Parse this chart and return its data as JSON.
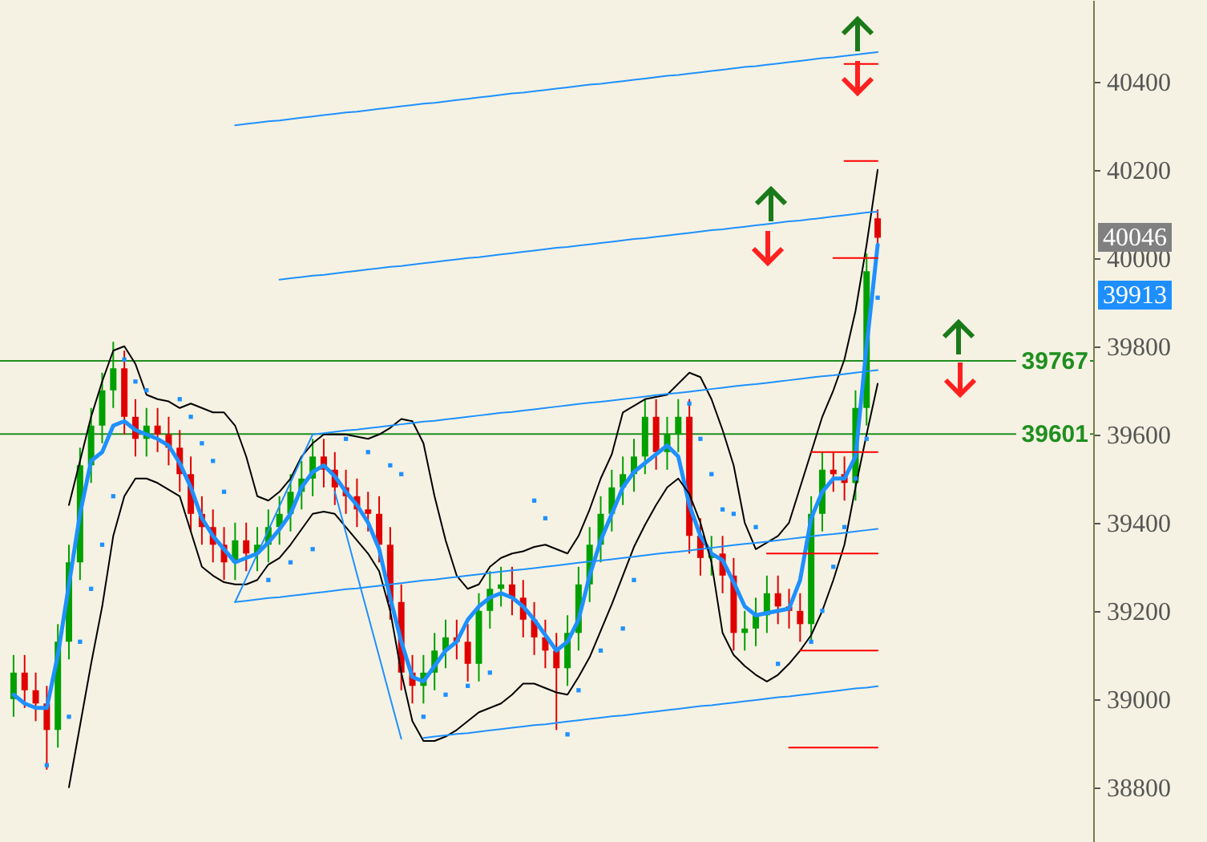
{
  "chart_data": {
    "type": "candlestick",
    "tick_labels": "y",
    "ylim": [
      38676,
      40585
    ],
    "yticks": [
      38800,
      39000,
      39200,
      39400,
      39600,
      39800,
      40000,
      40200,
      40400
    ],
    "categories": [
      null,
      null,
      null,
      null,
      null,
      null,
      null,
      null,
      null,
      null,
      null,
      null,
      null,
      null,
      null,
      null,
      null,
      null,
      null,
      null,
      null,
      null,
      null,
      null,
      null,
      null,
      null,
      null,
      null,
      null,
      null,
      null,
      null,
      null,
      null,
      null,
      null,
      null,
      null,
      null,
      null,
      null,
      null,
      null,
      null,
      null,
      null,
      null,
      null,
      null,
      null,
      null,
      null,
      null,
      null,
      null,
      null,
      null,
      null,
      null,
      null,
      null,
      null,
      null,
      null,
      null,
      null,
      null,
      null,
      null,
      null,
      null,
      null,
      null,
      null,
      null,
      null,
      null,
      null
    ],
    "ohlc": [
      [
        39000,
        39100,
        38960,
        39060
      ],
      [
        39060,
        39100,
        38980,
        39020
      ],
      [
        39020,
        39060,
        38950,
        38990
      ],
      [
        38990,
        39030,
        38840,
        38930
      ],
      [
        38930,
        39170,
        38890,
        39130
      ],
      [
        39130,
        39350,
        39090,
        39310
      ],
      [
        39310,
        39570,
        39270,
        39530
      ],
      [
        39530,
        39660,
        39490,
        39620
      ],
      [
        39620,
        39740,
        39580,
        39700
      ],
      [
        39700,
        39810,
        39660,
        39750
      ],
      [
        39750,
        39790,
        39600,
        39640
      ],
      [
        39640,
        39680,
        39550,
        39590
      ],
      [
        39590,
        39660,
        39550,
        39620
      ],
      [
        39620,
        39660,
        39560,
        39600
      ],
      [
        39600,
        39640,
        39530,
        39570
      ],
      [
        39570,
        39610,
        39470,
        39510
      ],
      [
        39510,
        39550,
        39380,
        39420
      ],
      [
        39420,
        39460,
        39350,
        39390
      ],
      [
        39390,
        39430,
        39310,
        39350
      ],
      [
        39350,
        39390,
        39270,
        39310
      ],
      [
        39310,
        39400,
        39270,
        39360
      ],
      [
        39360,
        39400,
        39290,
        39330
      ],
      [
        39330,
        39390,
        39290,
        39350
      ],
      [
        39350,
        39430,
        39310,
        39390
      ],
      [
        39390,
        39460,
        39350,
        39420
      ],
      [
        39420,
        39510,
        39380,
        39470
      ],
      [
        39470,
        39540,
        39430,
        39500
      ],
      [
        39500,
        39590,
        39460,
        39550
      ],
      [
        39550,
        39590,
        39480,
        39520
      ],
      [
        39520,
        39560,
        39440,
        39480
      ],
      [
        39480,
        39520,
        39420,
        39460
      ],
      [
        39460,
        39500,
        39390,
        39430
      ],
      [
        39430,
        39470,
        39380,
        39420
      ],
      [
        39420,
        39460,
        39310,
        39350
      ],
      [
        39350,
        39390,
        39180,
        39220
      ],
      [
        39220,
        39260,
        39020,
        39060
      ],
      [
        39060,
        39100,
        38990,
        39030
      ],
      [
        39030,
        39100,
        38990,
        39060
      ],
      [
        39060,
        39150,
        39020,
        39110
      ],
      [
        39110,
        39180,
        39070,
        39140
      ],
      [
        39140,
        39180,
        39090,
        39130
      ],
      [
        39130,
        39170,
        39040,
        39080
      ],
      [
        39080,
        39240,
        39040,
        39200
      ],
      [
        39200,
        39290,
        39160,
        39250
      ],
      [
        39250,
        39300,
        39210,
        39260
      ],
      [
        39260,
        39300,
        39190,
        39230
      ],
      [
        39230,
        39270,
        39140,
        39180
      ],
      [
        39180,
        39220,
        39100,
        39140
      ],
      [
        39140,
        39180,
        39070,
        39110
      ],
      [
        39110,
        39150,
        38930,
        39070
      ],
      [
        39070,
        39190,
        39030,
        39150
      ],
      [
        39150,
        39300,
        39110,
        39260
      ],
      [
        39260,
        39390,
        39220,
        39350
      ],
      [
        39350,
        39460,
        39310,
        39420
      ],
      [
        39420,
        39520,
        39380,
        39480
      ],
      [
        39480,
        39550,
        39440,
        39510
      ],
      [
        39510,
        39590,
        39470,
        39550
      ],
      [
        39550,
        39680,
        39510,
        39640
      ],
      [
        39640,
        39680,
        39520,
        39560
      ],
      [
        39560,
        39640,
        39520,
        39600
      ],
      [
        39600,
        39680,
        39560,
        39640
      ],
      [
        39640,
        39680,
        39330,
        39370
      ],
      [
        39370,
        39410,
        39280,
        39320
      ],
      [
        39320,
        39370,
        39280,
        39330
      ],
      [
        39330,
        39370,
        39240,
        39280
      ],
      [
        39280,
        39320,
        39110,
        39150
      ],
      [
        39150,
        39200,
        39110,
        39160
      ],
      [
        39160,
        39230,
        39120,
        39190
      ],
      [
        39190,
        39280,
        39150,
        39240
      ],
      [
        39240,
        39280,
        39170,
        39210
      ],
      [
        39210,
        39250,
        39160,
        39200
      ],
      [
        39200,
        39240,
        39130,
        39170
      ],
      [
        39170,
        39460,
        39130,
        39420
      ],
      [
        39420,
        39560,
        39380,
        39520
      ],
      [
        39520,
        39560,
        39470,
        39510
      ],
      [
        39510,
        39550,
        39450,
        39490
      ],
      [
        39490,
        39700,
        39450,
        39660
      ],
      [
        39660,
        40010,
        39620,
        39970
      ],
      [
        40090,
        40110,
        40030,
        40046
      ]
    ],
    "colors": [
      "#00a000",
      "#e00000",
      "#e00000",
      "#e00000",
      "#00a000",
      "#00a000",
      "#00a000",
      "#00a000",
      "#00a000",
      "#00a000",
      "#e00000",
      "#e00000",
      "#00a000",
      "#e00000",
      "#e00000",
      "#e00000",
      "#e00000",
      "#e00000",
      "#e00000",
      "#e00000",
      "#00a000",
      "#e00000",
      "#00a000",
      "#00a000",
      "#00a000",
      "#00a000",
      "#00a000",
      "#00a000",
      "#e00000",
      "#e00000",
      "#e00000",
      "#e00000",
      "#e00000",
      "#e00000",
      "#e00000",
      "#e00000",
      "#e00000",
      "#00a000",
      "#00a000",
      "#00a000",
      "#e00000",
      "#e00000",
      "#00a000",
      "#00a000",
      "#00a000",
      "#e00000",
      "#e00000",
      "#e00000",
      "#e00000",
      "#e00000",
      "#00a000",
      "#00a000",
      "#00a000",
      "#00a000",
      "#00a000",
      "#00a000",
      "#00a000",
      "#00a000",
      "#e00000",
      "#00a000",
      "#00a000",
      "#e00000",
      "#e00000",
      "#00a000",
      "#e00000",
      "#e00000",
      "#00a000",
      "#00a000",
      "#00a000",
      "#e00000",
      "#e00000",
      "#e00000",
      "#00a000",
      "#00a000",
      "#e00000",
      "#e00000",
      "#00a000",
      "#00a000",
      "#e00000"
    ],
    "series": [
      {
        "type": "line",
        "color": "#1e90ff",
        "values": [
          39010,
          38990,
          38980,
          38980,
          39100,
          39260,
          39420,
          39540,
          39560,
          39620,
          39630,
          39610,
          39600,
          39590,
          39575,
          39535,
          39480,
          39410,
          39370,
          39340,
          39310,
          39320,
          39330,
          39355,
          39385,
          39420,
          39480,
          39515,
          39530,
          39505,
          39470,
          39440,
          39400,
          39340,
          39230,
          39130,
          39050,
          39040,
          39075,
          39110,
          39130,
          39180,
          39210,
          39230,
          39240,
          39230,
          39210,
          39180,
          39145,
          39110,
          39130,
          39180,
          39280,
          39360,
          39420,
          39480,
          39515,
          39535,
          39555,
          39575,
          39550,
          39440,
          39370,
          39330,
          39315,
          39265,
          39210,
          39190,
          39195,
          39200,
          39205,
          39270,
          39410,
          39470,
          39500,
          39500,
          39550,
          39800,
          40030
        ]
      },
      {
        "type": "line",
        "color": "#000000",
        "values": [
          null,
          null,
          null,
          null,
          null,
          39440,
          39540,
          39640,
          39720,
          39790,
          39800,
          39760,
          39690,
          39680,
          39675,
          39660,
          39670,
          39660,
          39650,
          39650,
          39620,
          39550,
          39460,
          39450,
          39470,
          39500,
          39550,
          39580,
          39600,
          39600,
          39600,
          39595,
          39590,
          39600,
          39615,
          39635,
          39630,
          39580,
          39460,
          39360,
          39280,
          39250,
          39260,
          39300,
          39320,
          39330,
          39335,
          39345,
          39350,
          39340,
          39330,
          39370,
          39430,
          39500,
          39555,
          39650,
          39665,
          39680,
          39685,
          39690,
          39715,
          39740,
          39730,
          39680,
          39610,
          39530,
          39400,
          39340,
          39355,
          39370,
          39400,
          39480,
          39560,
          39640,
          39700,
          39770,
          39880,
          40030,
          40200
        ]
      },
      {
        "type": "line",
        "color": "#000000",
        "values": [
          null,
          null,
          null,
          null,
          null,
          38800,
          38940,
          39080,
          39210,
          39370,
          39460,
          39500,
          39500,
          39490,
          39475,
          39460,
          39380,
          39300,
          39280,
          39265,
          39260,
          39260,
          39270,
          39305,
          39320,
          39350,
          39385,
          39420,
          39425,
          39420,
          39390,
          39360,
          39330,
          39290,
          39200,
          39060,
          38950,
          38905,
          38905,
          38915,
          38930,
          38950,
          38970,
          38980,
          38990,
          39010,
          39035,
          39035,
          39025,
          39015,
          39010,
          39050,
          39095,
          39155,
          39215,
          39280,
          39345,
          39395,
          39440,
          39480,
          39500,
          39465,
          39400,
          39310,
          39150,
          39100,
          39075,
          39055,
          39040,
          39055,
          39080,
          39110,
          39145,
          39200,
          39270,
          39350,
          39480,
          39600,
          39715
        ]
      },
      {
        "type": "scatter",
        "marker": "square",
        "color": "#1e90ff",
        "values": [
          null,
          null,
          null,
          38850,
          null,
          38960,
          39130,
          39250,
          39350,
          39460,
          39770,
          39720,
          39700,
          null,
          null,
          39680,
          39640,
          39580,
          39540,
          39470,
          null,
          null,
          null,
          39270,
          null,
          39310,
          null,
          39340,
          null,
          null,
          39590,
          null,
          39560,
          null,
          39530,
          39510,
          null,
          38960,
          null,
          39010,
          null,
          39030,
          null,
          39060,
          null,
          null,
          null,
          39450,
          39410,
          null,
          38920,
          39020,
          null,
          39110,
          null,
          39160,
          39270,
          null,
          null,
          null,
          null,
          39670,
          39590,
          39510,
          39430,
          39420,
          null,
          39390,
          null,
          39080,
          null,
          null,
          39130,
          39200,
          39300,
          39390,
          39500,
          39590,
          39910
        ]
      },
      {
        "type": "line",
        "color": "#1e90ff",
        "values": [
          null,
          null,
          null,
          null,
          null,
          null,
          null,
          null,
          null,
          null,
          null,
          null,
          null,
          null,
          null,
          null,
          null,
          null,
          null,
          null,
          40301,
          40304,
          40307,
          40310,
          40312,
          40315,
          40318,
          40321,
          40324,
          40327,
          40330,
          40332,
          40335,
          40338,
          40341,
          40344,
          40347,
          40350,
          40352,
          40355,
          40358,
          40361,
          40364,
          40367,
          40370,
          40373,
          40375,
          40378,
          40381,
          40384,
          40387,
          40390,
          40393,
          40395,
          40398,
          40401,
          40404,
          40407,
          40410,
          40413,
          40415,
          40418,
          40421,
          40424,
          40427,
          40430,
          40433,
          40435,
          40438,
          40441,
          40444,
          40447,
          40450,
          40453,
          40455,
          40458,
          40461,
          40464,
          40467
        ]
      },
      {
        "type": "line",
        "color": "#1e90ff",
        "values": [
          null,
          null,
          null,
          null,
          null,
          null,
          null,
          null,
          null,
          null,
          null,
          null,
          null,
          null,
          null,
          null,
          null,
          null,
          null,
          null,
          null,
          null,
          null,
          null,
          39951,
          39954,
          39957,
          39960,
          39962,
          39965,
          39968,
          39971,
          39974,
          39977,
          39980,
          39982,
          39985,
          39988,
          39991,
          39994,
          39997,
          40000,
          40002,
          40005,
          40008,
          40011,
          40014,
          40017,
          40020,
          40023,
          40025,
          40028,
          40031,
          40034,
          40037,
          40040,
          40043,
          40045,
          40048,
          40051,
          40054,
          40057,
          40060,
          40063,
          40065,
          40068,
          40071,
          40074,
          40077,
          40080,
          40083,
          40085,
          40088,
          40091,
          40094,
          40097,
          40100,
          40103,
          40105
        ]
      },
      {
        "type": "line",
        "color": "#1e90ff",
        "values": [
          null,
          null,
          null,
          null,
          null,
          null,
          null,
          null,
          null,
          null,
          null,
          null,
          null,
          null,
          null,
          null,
          null,
          null,
          null,
          null,
          null,
          null,
          null,
          null,
          null,
          null,
          null,
          39600,
          39603,
          39606,
          39609,
          39611,
          39614,
          39617,
          39620,
          39623,
          39626,
          39629,
          39631,
          39634,
          39637,
          39640,
          39643,
          39646,
          39649,
          39651,
          39654,
          39657,
          39660,
          39663,
          39666,
          39669,
          39672,
          39674,
          39677,
          39680,
          39683,
          39686,
          39689,
          39692,
          39694,
          39697,
          39700,
          39703,
          39706,
          39709,
          39712,
          39714,
          39717,
          39720,
          39723,
          39726,
          39729,
          39732,
          39734,
          39737,
          39740,
          39743,
          39746
        ]
      },
      {
        "type": "line",
        "color": "#1e90ff",
        "values": [
          null,
          null,
          null,
          null,
          null,
          null,
          null,
          null,
          null,
          null,
          null,
          null,
          null,
          null,
          null,
          null,
          null,
          null,
          null,
          null,
          39220,
          39223,
          39226,
          39229,
          39231,
          39234,
          39237,
          39240,
          39243,
          39246,
          39249,
          39251,
          39254,
          39257,
          39260,
          39263,
          39266,
          39269,
          39271,
          39274,
          39277,
          39280,
          39283,
          39286,
          39289,
          39292,
          39294,
          39297,
          39300,
          39303,
          39306,
          39309,
          39312,
          39314,
          39317,
          39320,
          39323,
          39326,
          39329,
          39332,
          39334,
          39337,
          39340,
          39343,
          39346,
          39349,
          39352,
          39354,
          39357,
          39360,
          39363,
          39366,
          39369,
          39372,
          39374,
          39377,
          39380,
          39383,
          39386
        ]
      },
      {
        "type": "line",
        "color": "#1e90ff",
        "values": [
          null,
          null,
          null,
          null,
          null,
          null,
          null,
          null,
          null,
          null,
          null,
          null,
          null,
          null,
          null,
          null,
          null,
          null,
          null,
          null,
          null,
          null,
          null,
          null,
          null,
          null,
          null,
          null,
          null,
          null,
          null,
          null,
          null,
          null,
          null,
          null,
          null,
          38912,
          38915,
          38918,
          38921,
          38923,
          38926,
          38929,
          38932,
          38935,
          38938,
          38941,
          38943,
          38946,
          38949,
          38952,
          38955,
          38958,
          38961,
          38963,
          38966,
          38969,
          38972,
          38975,
          38978,
          38981,
          38984,
          38986,
          38989,
          38992,
          38995,
          38998,
          39001,
          39004,
          39006,
          39009,
          39012,
          39015,
          39018,
          39021,
          39024,
          39026,
          39029
        ]
      },
      {
        "type": "line",
        "color": "#1e90ff",
        "values": [
          null,
          null,
          null,
          null,
          null,
          null,
          null,
          null,
          null,
          null,
          null,
          null,
          null,
          null,
          null,
          null,
          null,
          null,
          null,
          null,
          39220,
          39274,
          39329,
          39383,
          39437,
          39491,
          39546,
          39600,
          null,
          null,
          null,
          null,
          null,
          null,
          null,
          null,
          null,
          null,
          null,
          null,
          null,
          null,
          null,
          null,
          null,
          null,
          null,
          null,
          null,
          null,
          null,
          null,
          null,
          null,
          null,
          null,
          null,
          null,
          null,
          null,
          null,
          null,
          null,
          null,
          null,
          null,
          null,
          null,
          null,
          null,
          null,
          null,
          null,
          null,
          null,
          null,
          null,
          null,
          null
        ]
      },
      {
        "type": "line",
        "color": "#1e90ff",
        "values": [
          null,
          null,
          null,
          null,
          null,
          null,
          null,
          null,
          null,
          null,
          null,
          null,
          null,
          null,
          null,
          null,
          null,
          null,
          null,
          null,
          null,
          null,
          null,
          null,
          null,
          null,
          null,
          null,
          null,
          39470,
          39377,
          39283,
          39190,
          39097,
          39003,
          38910,
          null,
          null,
          null,
          null,
          null,
          null,
          null,
          null,
          null,
          null,
          null,
          null,
          null,
          null,
          null,
          null,
          null,
          null,
          null,
          null,
          null,
          null,
          null,
          null,
          null,
          null,
          null,
          null,
          null,
          null,
          null,
          null,
          null,
          null,
          null,
          null,
          null,
          null,
          null,
          null,
          null,
          null,
          null
        ]
      },
      {
        "type": "line",
        "color": "#ff0000",
        "values": [
          null,
          null,
          null,
          null,
          null,
          null,
          null,
          null,
          null,
          null,
          null,
          null,
          null,
          null,
          null,
          null,
          null,
          null,
          null,
          null,
          null,
          null,
          null,
          null,
          null,
          null,
          null,
          null,
          null,
          null,
          null,
          null,
          null,
          null,
          null,
          null,
          null,
          null,
          null,
          null,
          null,
          null,
          null,
          null,
          null,
          null,
          null,
          null,
          null,
          null,
          null,
          null,
          null,
          null,
          null,
          null,
          null,
          null,
          null,
          null,
          null,
          null,
          null,
          null,
          null,
          null,
          null,
          null,
          null,
          null,
          null,
          null,
          null,
          null,
          null,
          40440,
          40440,
          40440,
          40440
        ]
      },
      {
        "type": "line",
        "color": "#ff0000",
        "values": [
          null,
          null,
          null,
          null,
          null,
          null,
          null,
          null,
          null,
          null,
          null,
          null,
          null,
          null,
          null,
          null,
          null,
          null,
          null,
          null,
          null,
          null,
          null,
          null,
          null,
          null,
          null,
          null,
          null,
          null,
          null,
          null,
          null,
          null,
          null,
          null,
          null,
          null,
          null,
          null,
          null,
          null,
          null,
          null,
          null,
          null,
          null,
          null,
          null,
          null,
          null,
          null,
          null,
          null,
          null,
          null,
          null,
          null,
          null,
          null,
          null,
          null,
          null,
          null,
          null,
          null,
          null,
          null,
          null,
          null,
          null,
          null,
          null,
          null,
          null,
          40220,
          40220,
          40220,
          40220
        ]
      },
      {
        "type": "line",
        "color": "#ff0000",
        "values": [
          null,
          null,
          null,
          null,
          null,
          null,
          null,
          null,
          null,
          null,
          null,
          null,
          null,
          null,
          null,
          null,
          null,
          null,
          null,
          null,
          null,
          null,
          null,
          null,
          null,
          null,
          null,
          null,
          null,
          null,
          null,
          null,
          null,
          null,
          null,
          null,
          null,
          null,
          null,
          null,
          null,
          null,
          null,
          null,
          null,
          null,
          null,
          null,
          null,
          null,
          null,
          null,
          null,
          null,
          null,
          null,
          null,
          null,
          null,
          null,
          null,
          null,
          null,
          null,
          null,
          null,
          null,
          null,
          null,
          null,
          null,
          null,
          null,
          null,
          40000,
          40000,
          40000,
          40000,
          40000
        ]
      },
      {
        "type": "line",
        "color": "#ff0000",
        "values": [
          null,
          null,
          null,
          null,
          null,
          null,
          null,
          null,
          null,
          null,
          null,
          null,
          null,
          null,
          null,
          null,
          null,
          null,
          null,
          null,
          null,
          null,
          null,
          null,
          null,
          null,
          null,
          null,
          null,
          null,
          null,
          null,
          null,
          null,
          null,
          null,
          null,
          null,
          null,
          null,
          null,
          null,
          null,
          null,
          null,
          null,
          null,
          null,
          null,
          null,
          null,
          null,
          null,
          null,
          null,
          null,
          null,
          null,
          null,
          null,
          null,
          null,
          null,
          null,
          null,
          null,
          null,
          null,
          null,
          null,
          null,
          null,
          39560,
          39560,
          39560,
          39560,
          39560,
          39560,
          39560
        ]
      },
      {
        "type": "line",
        "color": "#ff0000",
        "values": [
          null,
          null,
          null,
          null,
          null,
          null,
          null,
          null,
          null,
          null,
          null,
          null,
          null,
          null,
          null,
          null,
          null,
          null,
          null,
          null,
          null,
          null,
          null,
          null,
          null,
          null,
          null,
          null,
          null,
          null,
          null,
          null,
          null,
          null,
          null,
          null,
          null,
          null,
          null,
          null,
          null,
          null,
          null,
          null,
          null,
          null,
          null,
          null,
          null,
          null,
          null,
          null,
          null,
          null,
          null,
          null,
          null,
          null,
          null,
          null,
          null,
          null,
          null,
          null,
          null,
          null,
          null,
          null,
          39330,
          39330,
          39330,
          39330,
          39330,
          39330,
          39330,
          39330,
          39330,
          39330,
          39330
        ]
      },
      {
        "type": "line",
        "color": "#ff0000",
        "values": [
          null,
          null,
          null,
          null,
          null,
          null,
          null,
          null,
          null,
          null,
          null,
          null,
          null,
          null,
          null,
          null,
          null,
          null,
          null,
          null,
          null,
          null,
          null,
          null,
          null,
          null,
          null,
          null,
          null,
          null,
          null,
          null,
          null,
          null,
          null,
          null,
          null,
          null,
          null,
          null,
          null,
          null,
          null,
          null,
          null,
          null,
          null,
          null,
          null,
          null,
          null,
          null,
          null,
          null,
          null,
          null,
          null,
          null,
          null,
          null,
          null,
          null,
          null,
          null,
          null,
          null,
          null,
          null,
          null,
          null,
          null,
          39110,
          39110,
          39110,
          39110,
          39110,
          39110,
          39110,
          39110
        ]
      },
      {
        "type": "line",
        "color": "#ff0000",
        "values": [
          null,
          null,
          null,
          null,
          null,
          null,
          null,
          null,
          null,
          null,
          null,
          null,
          null,
          null,
          null,
          null,
          null,
          null,
          null,
          null,
          null,
          null,
          null,
          null,
          null,
          null,
          null,
          null,
          null,
          null,
          null,
          null,
          null,
          null,
          null,
          null,
          null,
          null,
          null,
          null,
          null,
          null,
          null,
          null,
          null,
          null,
          null,
          null,
          null,
          null,
          null,
          null,
          null,
          null,
          null,
          null,
          null,
          null,
          null,
          null,
          null,
          null,
          null,
          null,
          null,
          null,
          null,
          null,
          null,
          null,
          38890,
          38890,
          38890,
          38890,
          38890,
          38890,
          38890,
          38890,
          38890
        ]
      }
    ],
    "ref_lines": [
      {
        "axis": "y",
        "value": 39767,
        "label": "39767",
        "color": "#1f8f1f"
      },
      {
        "axis": "y",
        "value": 39601,
        "label": "39601",
        "color": "#1f8f1f"
      }
    ],
    "annotations": [
      "40046",
      "39913"
    ]
  }
}
